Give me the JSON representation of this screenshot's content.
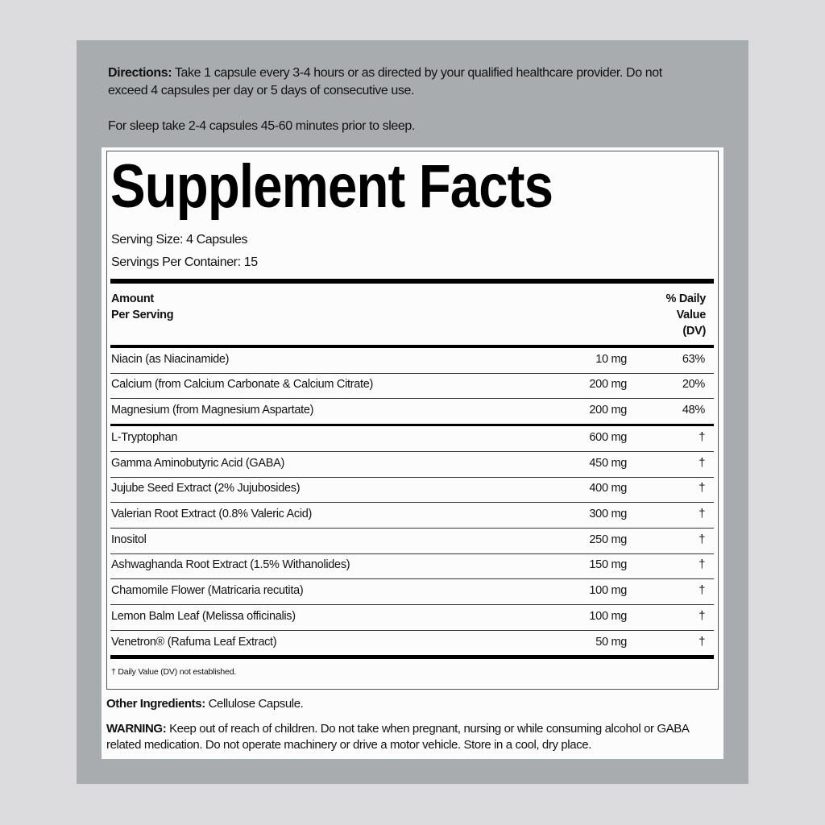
{
  "directions": {
    "label": "Directions:",
    "text": " Take 1 capsule every 3-4 hours or as directed by your qualified healthcare provider. Do not exceed 4 capsules per day or 5 days of consecutive use.",
    "sleep": "For sleep take 2-4 capsules 45-60 minutes prior to sleep."
  },
  "facts": {
    "title": "Supplement Facts",
    "serving_size": "Serving Size: 4 Capsules",
    "servings_per_container": "Servings Per Container: 15",
    "header_amount_1": "Amount",
    "header_amount_2": "Per Serving",
    "header_dv_1": "% Daily",
    "header_dv_2": "Value",
    "header_dv_3": "(DV)",
    "rows": [
      {
        "name": "Niacin (as Niacinamide)",
        "amount": "10 mg",
        "dv": "63%"
      },
      {
        "name": "Calcium (from Calcium Carbonate & Calcium Citrate)",
        "amount": "200 mg",
        "dv": "20%"
      },
      {
        "name": "Magnesium (from Magnesium Aspartate)",
        "amount": "200 mg",
        "dv": "48%"
      },
      {
        "name": "L-Tryptophan",
        "amount": "600 mg",
        "dv": "†"
      },
      {
        "name": "Gamma Aminobutyric Acid (GABA)",
        "amount": "450 mg",
        "dv": "†"
      },
      {
        "name": "Jujube Seed Extract (2% Jujubosides)",
        "amount": "400 mg",
        "dv": "†"
      },
      {
        "name": "Valerian Root Extract (0.8% Valeric Acid)",
        "amount": "300 mg",
        "dv": "†"
      },
      {
        "name": "Inositol",
        "amount": "250 mg",
        "dv": "†"
      },
      {
        "name": "Ashwaghanda Root Extract (1.5% Withanolides)",
        "amount": "150 mg",
        "dv": "†"
      },
      {
        "name": "Chamomile Flower (Matricaria recutita)",
        "amount": "100 mg",
        "dv": "†"
      },
      {
        "name": "Lemon Balm Leaf (Melissa officinalis)",
        "amount": "100 mg",
        "dv": "†"
      },
      {
        "name": "Venetron® (Rafuma Leaf Extract)",
        "amount": "50 mg",
        "dv": "†"
      }
    ],
    "footnote": "† Daily Value (DV) not established."
  },
  "other": {
    "label": "Other Ingredients:",
    "text": " Cellulose Capsule."
  },
  "warning": {
    "label": "WARNING:",
    "text": " Keep out of reach of children. Do not take when pregnant, nursing or while consuming alcohol or GABA related medication. Do not operate machinery or drive a motor vehicle. Store in a cool, dry place."
  }
}
